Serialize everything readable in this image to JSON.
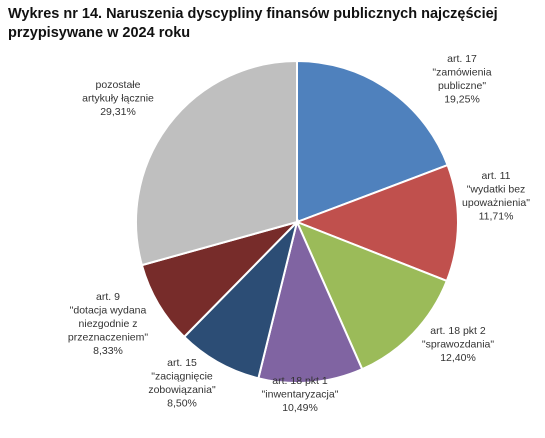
{
  "chart_data": {
    "type": "pie",
    "title_line1": "Wykres nr 14. Naruszenia dyscypliny finansów publicznych najczęściej",
    "title_line2": "przypisywane w 2024 roku",
    "slices": [
      {
        "lines": [
          "art. 17",
          "\"zamówienia",
          "publiczne\""
        ],
        "value_label": "19,25%",
        "value": 19.25,
        "color": "#4f81bd"
      },
      {
        "lines": [
          "art. 11",
          "\"wydatki bez",
          "upoważnienia\""
        ],
        "value_label": "11,71%",
        "value": 11.71,
        "color": "#c0504d"
      },
      {
        "lines": [
          "art. 18 pkt 2",
          "\"sprawozdania\""
        ],
        "value_label": "12,40%",
        "value": 12.4,
        "color": "#9bbb59"
      },
      {
        "lines": [
          "art. 18 pkt 1",
          "\"inwentaryzacja\""
        ],
        "value_label": "10,49%",
        "value": 10.49,
        "color": "#8064a2"
      },
      {
        "lines": [
          "art. 15",
          "\"zaciągnięcie",
          "zobowiązania\""
        ],
        "value_label": "8,50%",
        "value": 8.5,
        "color": "#2c4d75"
      },
      {
        "lines": [
          "art. 9",
          "\"dotacja wydana",
          "niezgodnie z",
          "przeznaczeniem\""
        ],
        "value_label": "8,33%",
        "value": 8.33,
        "color": "#772c2a"
      },
      {
        "lines": [
          "pozostałe",
          "artykuły łącznie"
        ],
        "value_label": "29,31%",
        "value": 29.31,
        "color": "#bfbfbf"
      }
    ]
  }
}
